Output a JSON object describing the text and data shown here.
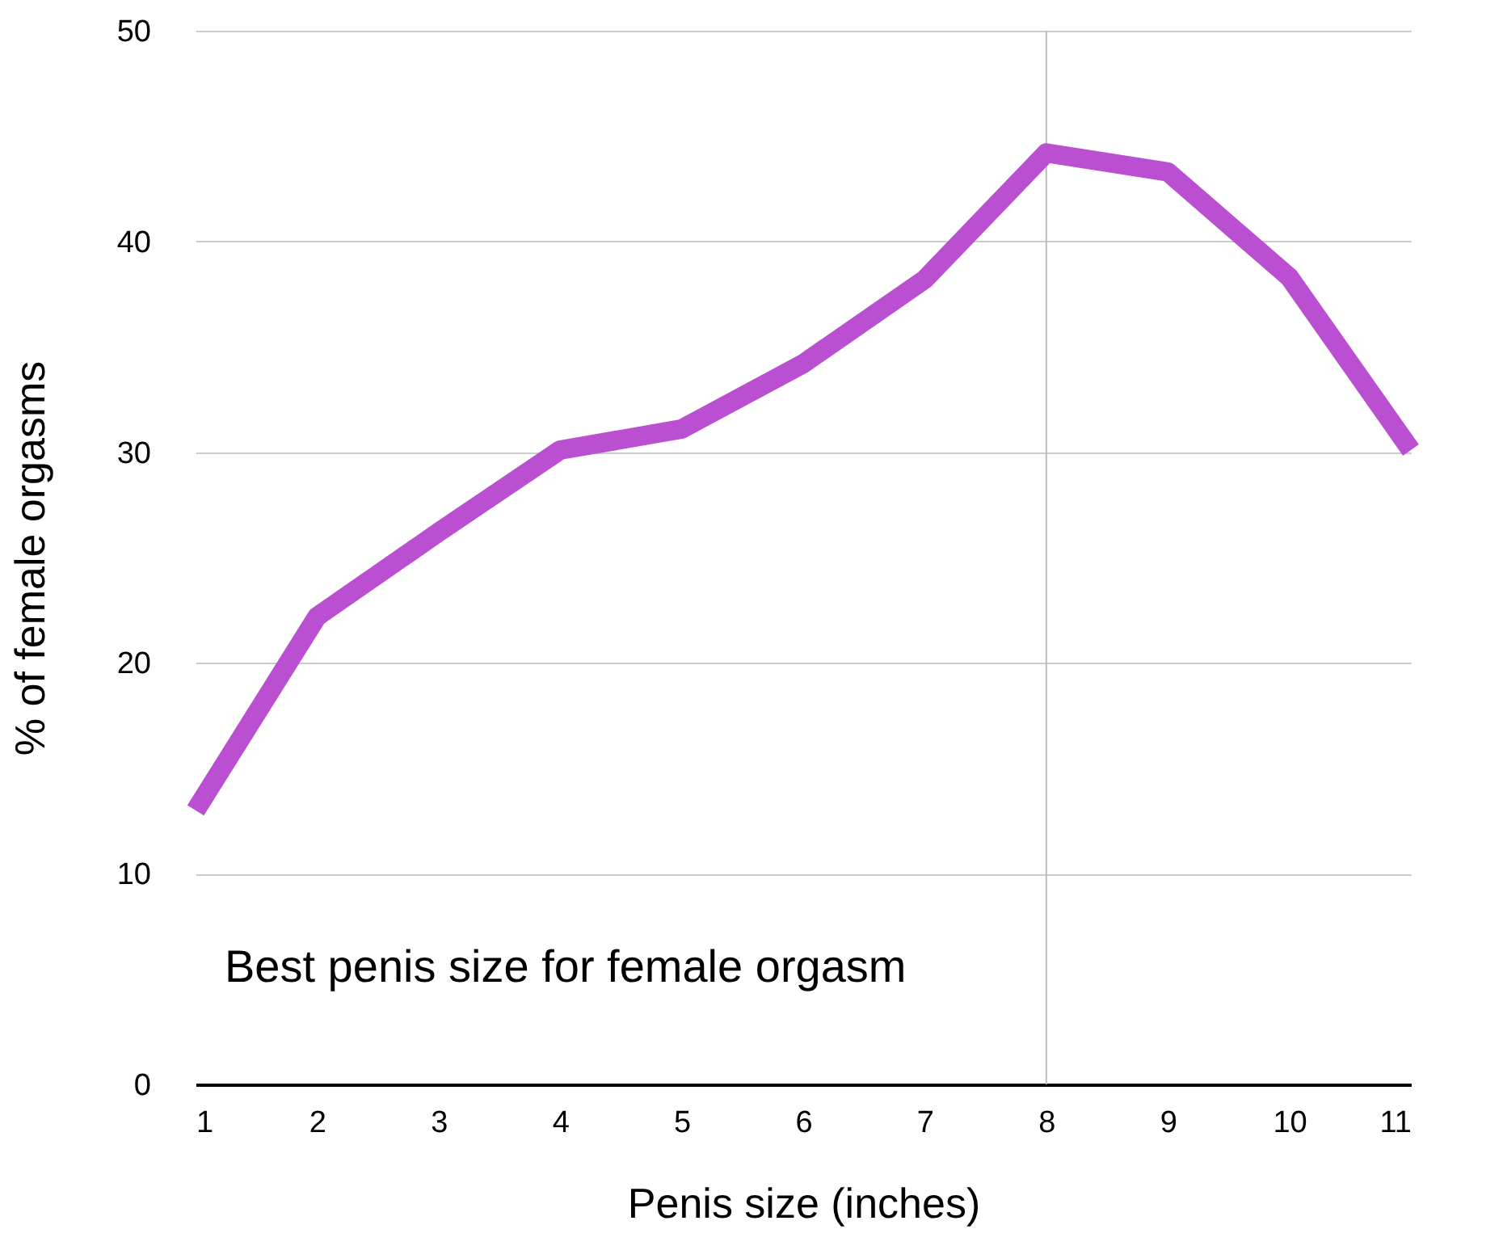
{
  "chart_data": {
    "type": "line",
    "xlabel": "Penis size (inches)",
    "ylabel": "% of female orgasms",
    "annotations": [
      "Best penis size for female orgasm"
    ],
    "x": [
      1,
      2,
      3,
      4,
      5,
      6,
      7,
      8,
      9,
      10,
      11
    ],
    "series": [
      {
        "color": "#bb4fd1",
        "values": [
          13,
          22.2,
          26.2,
          30.1,
          31.1,
          34.2,
          38.2,
          44.2,
          43.3,
          38.3,
          30.1
        ]
      }
    ],
    "xlim": [
      1,
      11
    ],
    "xticks": [
      1,
      2,
      3,
      4,
      5,
      6,
      7,
      8,
      9,
      10,
      11
    ],
    "ylim": [
      0,
      50
    ],
    "yticks": [
      0,
      10,
      20,
      30,
      40,
      50
    ],
    "ref_lines": [
      {
        "axis": "x",
        "value": 8,
        "color": "#bbbbbb"
      }
    ],
    "grid": "y",
    "marker": "none",
    "line_style": "solid"
  }
}
